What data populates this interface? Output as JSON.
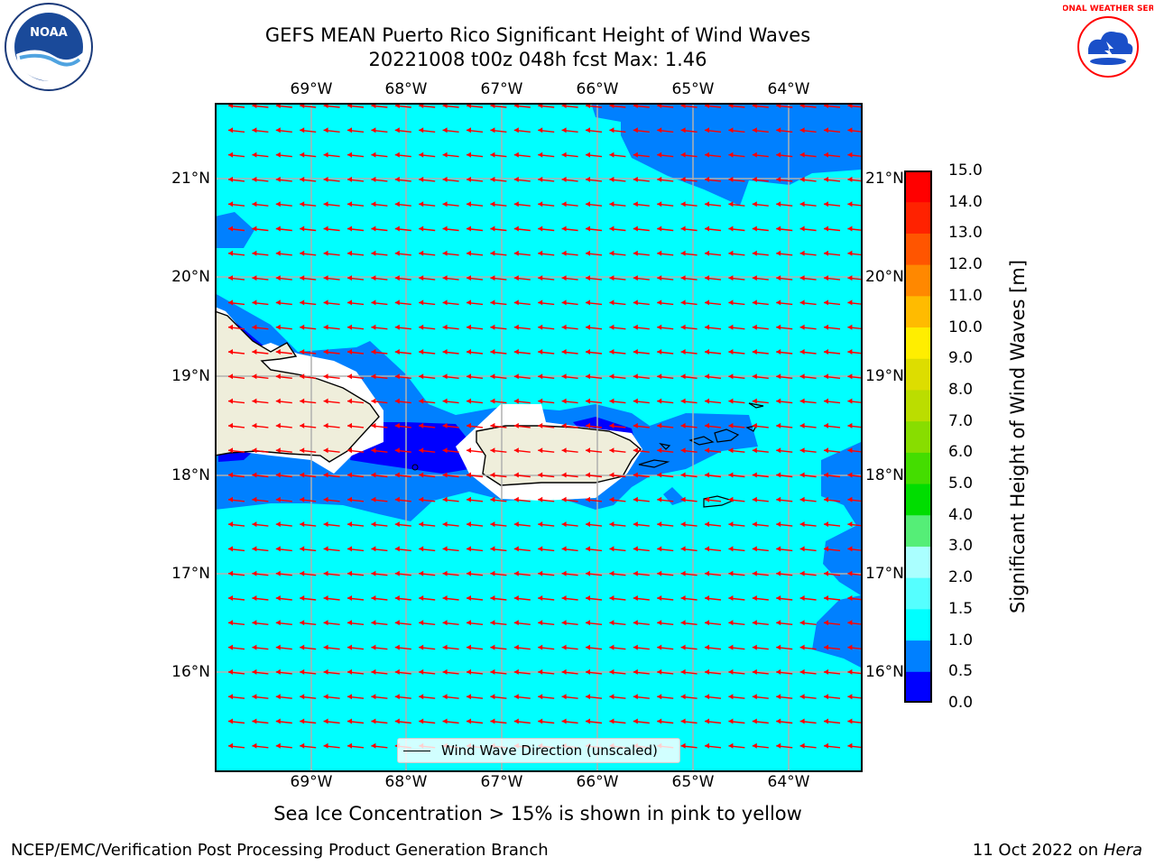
{
  "header": {
    "title_line1": "GEFS MEAN Puerto Rico Significant Height of Wind Waves",
    "title_line2": "20221008 t00z 048h fcst   Max: 1.46"
  },
  "map": {
    "lon_labels": [
      "69°W",
      "68°W",
      "67°W",
      "66°W",
      "65°W",
      "64°W"
    ],
    "lat_labels": [
      "21°N",
      "20°N",
      "19°N",
      "18°N",
      "17°N",
      "16°N"
    ],
    "legend_label": "Wind Wave Direction (unscaled)",
    "wave_direction": "toward west",
    "colors": {
      "ocean_low": "#00ffff",
      "ocean_mid": "#0080ff",
      "ocean_deep": "#0000ff",
      "land": "#efeedb",
      "arrow": "#ff0000"
    }
  },
  "colorbar": {
    "title": "Significant Height of Wind Waves [m]",
    "tick_labels": [
      "0.0",
      "0.5",
      "1.0",
      "1.5",
      "2.0",
      "3.0",
      "4.0",
      "5.0",
      "6.0",
      "7.0",
      "8.0",
      "9.0",
      "10.0",
      "11.0",
      "12.0",
      "13.0",
      "14.0",
      "15.0"
    ],
    "colors": [
      "#0000ff",
      "#0080ff",
      "#00ffff",
      "#55ffff",
      "#aaffff",
      "#55ee77",
      "#00dd00",
      "#44dd00",
      "#88dd00",
      "#bbdd00",
      "#dddd00",
      "#ffee00",
      "#ffbb00",
      "#ff8800",
      "#ff5500",
      "#ff2200",
      "#ff0000"
    ]
  },
  "notes": {
    "ice_note": "Sea Ice Concentration > 15% is shown in pink to yellow",
    "footer_left": "NCEP/EMC/Verification Post Processing Product Generation Branch",
    "footer_date": "11 Oct 2022 on ",
    "footer_machine": "Hera"
  },
  "logos": {
    "noaa_text": "NOAA",
    "nws_text": "NATIONAL WEATHER SERVICE"
  }
}
